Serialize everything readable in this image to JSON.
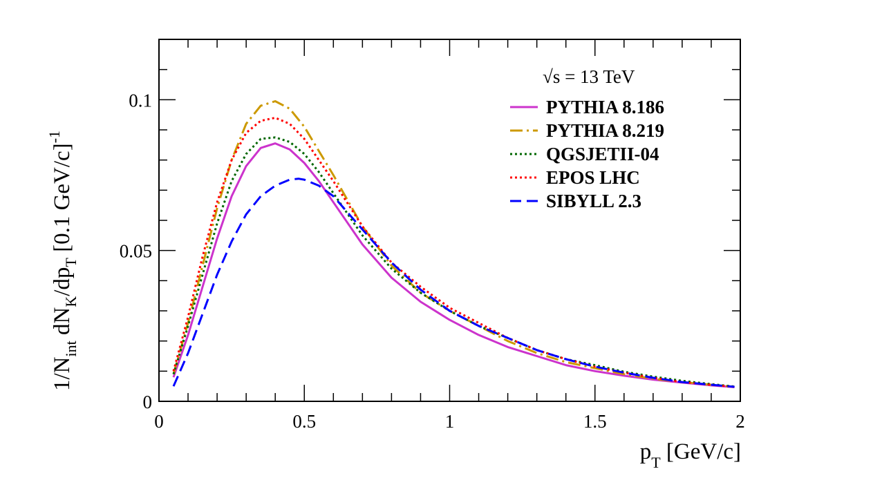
{
  "chart_data": {
    "type": "line",
    "xlim": [
      0,
      2
    ],
    "ylim": [
      0,
      0.12
    ],
    "x_ticks": [
      {
        "value": 0,
        "label": "0"
      },
      {
        "value": 0.5,
        "label": "0.5"
      },
      {
        "value": 1,
        "label": "1"
      },
      {
        "value": 1.5,
        "label": "1.5"
      },
      {
        "value": 2,
        "label": "2"
      }
    ],
    "y_ticks": [
      {
        "value": 0,
        "label": "0"
      },
      {
        "value": 0.05,
        "label": "0.05"
      },
      {
        "value": 0.1,
        "label": "0.1"
      }
    ],
    "x_minor_step": 0.1,
    "y_minor_step": 0.01,
    "grid": false,
    "legend_position": "top-right",
    "xlabel": {
      "main": "p",
      "sub": "T",
      "rest": " [GeV/c]"
    },
    "ylabel": {
      "p1": "1/N",
      "s1": "int",
      "p2": " dN",
      "s2": "K",
      "p3": "/dp",
      "s3": "T",
      "p4": " [0.1 GeV/c]",
      "sup": "-1"
    },
    "legend_header": "√s = 13 TeV",
    "series": [
      {
        "name": "PYTHIA 8.186",
        "color": "#cc33cc",
        "dash": "solid",
        "x": [
          0.05,
          0.1,
          0.15,
          0.2,
          0.25,
          0.3,
          0.35,
          0.4,
          0.45,
          0.5,
          0.55,
          0.6,
          0.7,
          0.8,
          0.9,
          1.0,
          1.1,
          1.2,
          1.3,
          1.4,
          1.5,
          1.6,
          1.7,
          1.8,
          1.9,
          1.98
        ],
        "y": [
          0.008,
          0.022,
          0.038,
          0.054,
          0.068,
          0.078,
          0.084,
          0.0855,
          0.0835,
          0.079,
          0.073,
          0.066,
          0.052,
          0.041,
          0.033,
          0.027,
          0.022,
          0.018,
          0.015,
          0.012,
          0.01,
          0.0085,
          0.0072,
          0.0062,
          0.0053,
          0.0047
        ]
      },
      {
        "name": "PYTHIA 8.219",
        "color": "#cc9900",
        "dash": "dashdot",
        "x": [
          0.05,
          0.1,
          0.15,
          0.2,
          0.25,
          0.3,
          0.35,
          0.4,
          0.45,
          0.5,
          0.55,
          0.6,
          0.7,
          0.8,
          0.9,
          1.0,
          1.1,
          1.2,
          1.3,
          1.4,
          1.5,
          1.6,
          1.7,
          1.8,
          1.9,
          1.98
        ],
        "y": [
          0.009,
          0.026,
          0.045,
          0.064,
          0.08,
          0.092,
          0.098,
          0.0995,
          0.097,
          0.091,
          0.083,
          0.075,
          0.058,
          0.045,
          0.036,
          0.03,
          0.025,
          0.02,
          0.016,
          0.013,
          0.011,
          0.009,
          0.0075,
          0.0064,
          0.0055,
          0.0048
        ]
      },
      {
        "name": "QGSJETII-04",
        "color": "#006600",
        "dash": "dotted",
        "x": [
          0.05,
          0.1,
          0.15,
          0.2,
          0.25,
          0.3,
          0.35,
          0.4,
          0.45,
          0.5,
          0.55,
          0.6,
          0.7,
          0.8,
          0.9,
          1.0,
          1.1,
          1.2,
          1.3,
          1.4,
          1.5,
          1.6,
          1.7,
          1.8,
          1.9,
          1.98
        ],
        "y": [
          0.009,
          0.025,
          0.042,
          0.059,
          0.073,
          0.082,
          0.087,
          0.0875,
          0.086,
          0.082,
          0.076,
          0.069,
          0.055,
          0.044,
          0.036,
          0.03,
          0.025,
          0.021,
          0.017,
          0.014,
          0.012,
          0.0098,
          0.0082,
          0.0068,
          0.0057,
          0.0049
        ]
      },
      {
        "name": "EPOS LHC",
        "color": "#ff0000",
        "dash": "dotted",
        "x": [
          0.05,
          0.1,
          0.15,
          0.2,
          0.25,
          0.3,
          0.35,
          0.4,
          0.45,
          0.5,
          0.55,
          0.6,
          0.7,
          0.8,
          0.9,
          1.0,
          1.1,
          1.2,
          1.3,
          1.4,
          1.5,
          1.6,
          1.7,
          1.8,
          1.9,
          1.98
        ],
        "y": [
          0.01,
          0.028,
          0.048,
          0.066,
          0.08,
          0.089,
          0.093,
          0.094,
          0.092,
          0.087,
          0.08,
          0.073,
          0.058,
          0.046,
          0.038,
          0.031,
          0.026,
          0.021,
          0.017,
          0.014,
          0.0115,
          0.0095,
          0.0078,
          0.0064,
          0.0055,
          0.0048
        ]
      },
      {
        "name": "SIBYLL 2.3",
        "color": "#0000ff",
        "dash": "dashed",
        "x": [
          0.05,
          0.1,
          0.15,
          0.2,
          0.25,
          0.3,
          0.35,
          0.4,
          0.45,
          0.48,
          0.5,
          0.55,
          0.6,
          0.7,
          0.8,
          0.9,
          1.0,
          1.1,
          1.2,
          1.3,
          1.4,
          1.5,
          1.6,
          1.7,
          1.8,
          1.9,
          1.98
        ],
        "y": [
          0.005,
          0.016,
          0.029,
          0.042,
          0.053,
          0.062,
          0.068,
          0.0715,
          0.0735,
          0.0738,
          0.0735,
          0.0715,
          0.068,
          0.057,
          0.046,
          0.037,
          0.03,
          0.025,
          0.021,
          0.017,
          0.014,
          0.0115,
          0.0095,
          0.0078,
          0.0064,
          0.0055,
          0.0048
        ]
      }
    ]
  }
}
